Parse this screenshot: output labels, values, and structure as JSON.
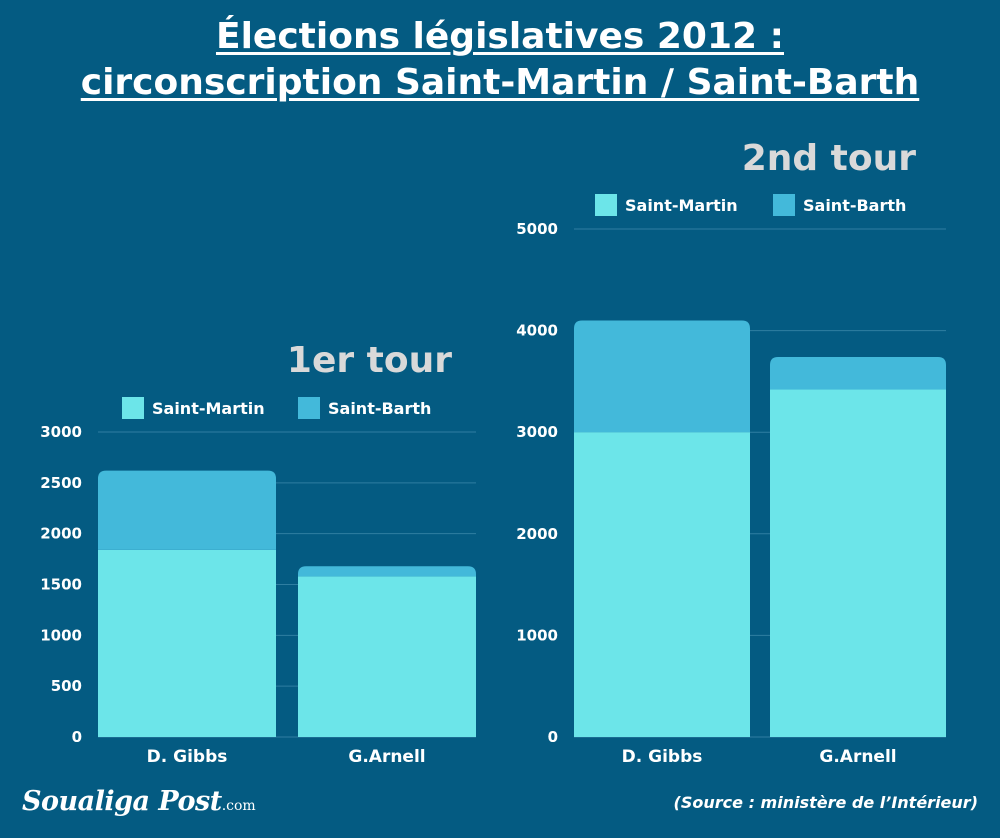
{
  "page": {
    "title_line1": "Élections législatives 2012 :",
    "title_line2": "circonscription Saint-Martin / Saint-Barth",
    "logo": "Soualiga Post",
    "logo_suffix": ".com",
    "source": "(Source : ministère de l’Intérieur)"
  },
  "colors": {
    "background": "#045b82",
    "saint_martin": "#6ce5e9",
    "saint_barth": "#43b9da"
  },
  "chart_data": [
    {
      "type": "bar",
      "stacked": true,
      "title": "1er tour",
      "categories": [
        "D. Gibbs",
        "G.Arnell"
      ],
      "series": [
        {
          "name": "Saint-Martin",
          "values": [
            1840,
            1580
          ]
        },
        {
          "name": "Saint-Barth",
          "values": [
            780,
            100
          ]
        }
      ],
      "ylim": [
        0,
        3000
      ],
      "yticks": [
        0,
        500,
        1000,
        1500,
        2000,
        2500,
        3000
      ],
      "grid": true,
      "legend": "top"
    },
    {
      "type": "bar",
      "stacked": true,
      "title": "2nd tour",
      "categories": [
        "D. Gibbs",
        "G.Arnell"
      ],
      "series": [
        {
          "name": "Saint-Martin",
          "values": [
            3000,
            3420
          ]
        },
        {
          "name": "Saint-Barth",
          "values": [
            1100,
            320
          ]
        }
      ],
      "ylim": [
        0,
        5000
      ],
      "yticks": [
        0,
        1000,
        2000,
        3000,
        4000,
        5000
      ],
      "grid": true,
      "legend": "top"
    }
  ]
}
